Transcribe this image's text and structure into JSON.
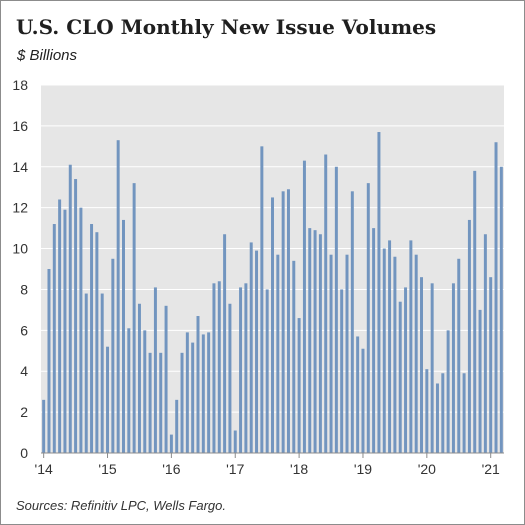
{
  "header": {
    "title": "U.S. CLO Monthly New Issue Volumes",
    "subtitle": "$ Billions"
  },
  "footer": {
    "source": "Sources: Refinitiv LPC, Wells Fargo."
  },
  "colors": {
    "bar": "#7295bf",
    "plot_background": "#e6e6e6",
    "gridline": "#ffffff",
    "axis": "#8c8c8c"
  },
  "chart_data": {
    "type": "bar",
    "title": "U.S. CLO Monthly New Issue Volumes",
    "subtitle": "$ Billions",
    "xlabel": "",
    "ylabel": "",
    "ylim": [
      0,
      18
    ],
    "yticks": [
      0,
      2,
      4,
      6,
      8,
      10,
      12,
      14,
      16,
      18
    ],
    "grid": "horizontal",
    "start": "2014-01",
    "xtick_labels": [
      {
        "label": "'14",
        "index": 0
      },
      {
        "label": "'15",
        "index": 12
      },
      {
        "label": "'16",
        "index": 24
      },
      {
        "label": "'17",
        "index": 36
      },
      {
        "label": "'18",
        "index": 48
      },
      {
        "label": "'19",
        "index": 60
      },
      {
        "label": "'20",
        "index": 72
      },
      {
        "label": "'21",
        "index": 84
      }
    ],
    "values": [
      2.6,
      9.0,
      11.2,
      12.4,
      11.9,
      14.1,
      13.4,
      12.0,
      7.8,
      11.2,
      10.8,
      7.8,
      5.2,
      9.5,
      15.3,
      11.4,
      6.1,
      13.2,
      7.3,
      6.0,
      4.9,
      8.1,
      4.9,
      7.2,
      0.9,
      2.6,
      4.9,
      5.9,
      5.4,
      6.7,
      5.8,
      5.9,
      8.3,
      8.4,
      10.7,
      7.3,
      1.1,
      8.1,
      8.3,
      10.3,
      9.9,
      15.0,
      8.0,
      12.5,
      9.7,
      12.8,
      12.9,
      9.4,
      6.6,
      14.3,
      11.0,
      10.9,
      10.7,
      14.6,
      9.7,
      14.0,
      8.0,
      9.7,
      12.8,
      5.7,
      5.1,
      13.2,
      11.0,
      15.7,
      10.0,
      10.4,
      9.6,
      7.4,
      8.1,
      10.4,
      9.7,
      8.6,
      4.1,
      8.3,
      3.4,
      3.9,
      6.0,
      8.3,
      9.5,
      3.9,
      11.4,
      13.8,
      7.0,
      10.7,
      8.6,
      15.2,
      14.0
    ]
  }
}
